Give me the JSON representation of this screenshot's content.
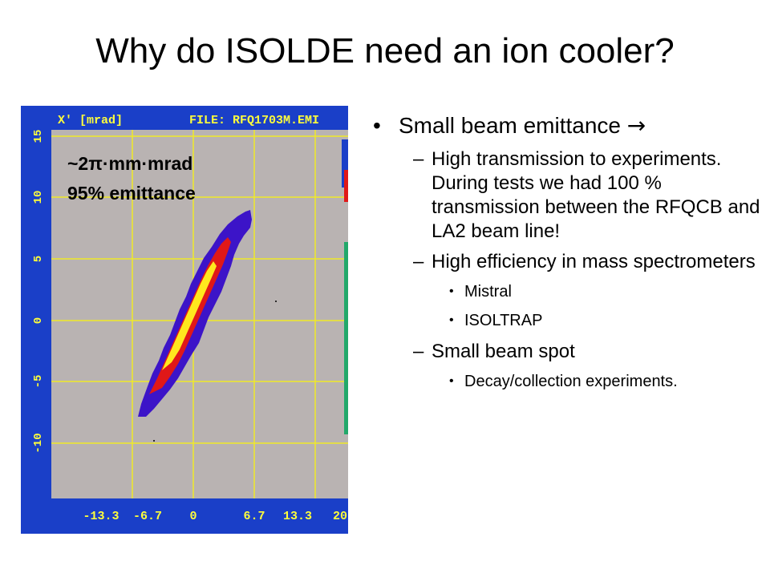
{
  "slide": {
    "title": "Why do ISOLDE need an ion cooler?"
  },
  "plot": {
    "y_axis_label": "X' [mrad]",
    "file_label": "FILE: RFQ1703M.EMI",
    "y_ticks": [
      "15",
      "10",
      "5",
      "0",
      "-5",
      "-10"
    ],
    "x_ticks": [
      "-13.3",
      "-6.7",
      "0",
      "6.7",
      "13.3",
      "20"
    ],
    "annotation_line1": "~2π·mm·mrad",
    "annotation_line2": "95% emittance",
    "colors": {
      "frame": "#1a3fc8",
      "plot_bg": "#b9b3b2",
      "grid": "#f0ea28",
      "axis_text": "#ffff3c",
      "outer_halo": "#3c14c8",
      "inner_halo": "#e01818",
      "core": "#ffe81e"
    }
  },
  "bullets": {
    "b1": "Small beam emittance ",
    "b1_arrow": "→",
    "s1": "High transmission to experiments. During tests we had 100 % transmission between the RFQCB and LA2 beam line!",
    "s2": "High efficiency in mass spectrometers",
    "s2_items": [
      "Mistral",
      "ISOLTRAP"
    ],
    "s3": "Small beam spot",
    "s3_items": [
      "Decay/collection experiments."
    ]
  }
}
